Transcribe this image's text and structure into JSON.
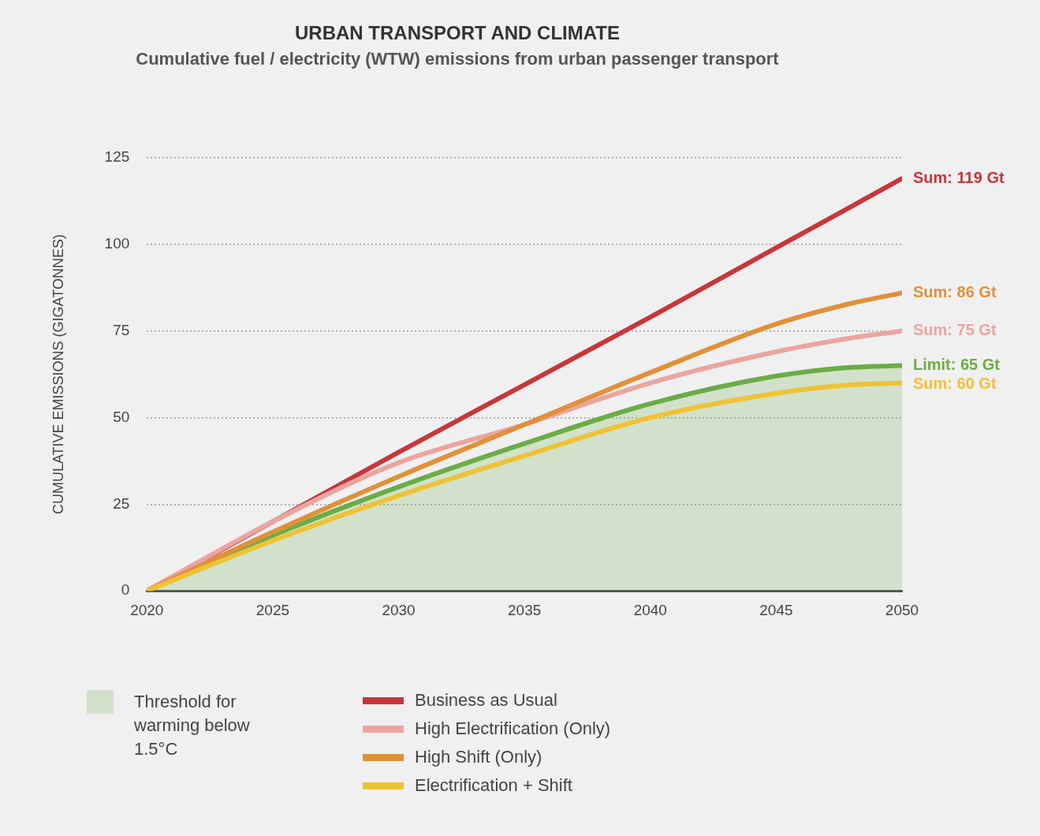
{
  "chart_data": {
    "type": "line",
    "title": "URBAN TRANSPORT AND CLIMATE",
    "subtitle": "Cumulative fuel / electricity (WTW) emissions from urban passenger transport",
    "ylabel": "CUMULATIVE EMISSIONS (GIGATONNES)",
    "x": [
      2020,
      2025,
      2030,
      2035,
      2040,
      2045,
      2048,
      2050
    ],
    "xlim": [
      2020,
      2050
    ],
    "xticks": [
      2020,
      2025,
      2030,
      2035,
      2040,
      2045,
      2050
    ],
    "ylim": [
      0,
      125
    ],
    "yticks": [
      0,
      25,
      50,
      75,
      100,
      125
    ],
    "grid": "y",
    "legend": "bottom",
    "marker": "none",
    "series": [
      {
        "name": "Threshold for warming below 1.5°C",
        "type": "area",
        "color": "#6aad46",
        "values": [
          0,
          16,
          30,
          42.5,
          54,
          62,
          64.5,
          65
        ],
        "value_labels": [
          null,
          null,
          null,
          null,
          null,
          null,
          null,
          "Limit: 65 Gt"
        ]
      },
      {
        "name": "Business as Usual",
        "type": "line",
        "color": "#c8363a",
        "values": [
          0,
          20,
          40,
          59.5,
          79,
          99,
          111,
          119
        ],
        "value_labels": [
          null,
          null,
          null,
          null,
          null,
          null,
          null,
          "Sum: 119 Gt"
        ]
      },
      {
        "name": "High Electrification (Only)",
        "type": "line",
        "color": "#eba59f",
        "values": [
          0,
          20,
          37,
          48,
          60,
          69,
          73,
          75
        ],
        "value_labels": [
          null,
          null,
          null,
          null,
          null,
          null,
          null,
          "Sum: 75 Gt"
        ]
      },
      {
        "name": "High Shift (Only)",
        "type": "line",
        "color": "#e0913a",
        "values": [
          0,
          17,
          33,
          48,
          63,
          77,
          83,
          86
        ],
        "value_labels": [
          null,
          null,
          null,
          null,
          null,
          null,
          null,
          "Sum: 86 Gt"
        ]
      },
      {
        "name": "Electrification + Shift",
        "type": "line",
        "color": "#efc235",
        "values": [
          0,
          14.5,
          27.5,
          39,
          50,
          57,
          59.5,
          60
        ],
        "value_labels": [
          null,
          null,
          null,
          null,
          null,
          null,
          null,
          "Sum: 60 Gt"
        ]
      }
    ]
  }
}
